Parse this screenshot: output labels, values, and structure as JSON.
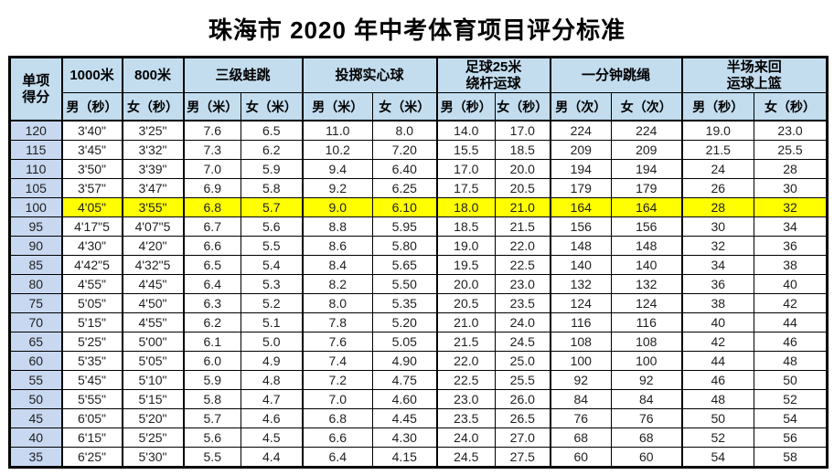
{
  "title": "珠海市 2020 年中考体育项目评分标准",
  "table": {
    "score_header": "单项\n得分",
    "groups": [
      {
        "label": "1000米",
        "span": 1
      },
      {
        "label": "800米",
        "span": 1
      },
      {
        "label": "三级蛙跳",
        "span": 2
      },
      {
        "label": "投掷实心球",
        "span": 2
      },
      {
        "label": "足球25米\n绕杆运球",
        "span": 2
      },
      {
        "label": "一分钟跳绳",
        "span": 2
      },
      {
        "label": "半场来回\n运球上篮",
        "span": 2
      }
    ],
    "sub_headers": [
      "男（秒）",
      "女（秒）",
      "男（米）",
      "女（米）",
      "男（米）",
      "女（米）",
      "男（秒）",
      "女（秒）",
      "男（次）",
      "女（次）",
      "男（秒）",
      "女（秒）"
    ],
    "highlight_score": "100",
    "rows": [
      {
        "score": "120",
        "values": [
          "3'40\"",
          "3'25\"",
          "7.6",
          "6.5",
          "11.0",
          "8.0",
          "14.0",
          "17.0",
          "224",
          "224",
          "19.0",
          "23.0"
        ]
      },
      {
        "score": "115",
        "values": [
          "3'45\"",
          "3'32\"",
          "7.3",
          "6.2",
          "10.2",
          "7.20",
          "15.5",
          "18.5",
          "209",
          "209",
          "21.5",
          "25.5"
        ]
      },
      {
        "score": "110",
        "values": [
          "3'50\"",
          "3'39\"",
          "7.0",
          "5.9",
          "9.4",
          "6.40",
          "17.0",
          "20.0",
          "194",
          "194",
          "24",
          "28"
        ]
      },
      {
        "score": "105",
        "values": [
          "3'57\"",
          "3'47\"",
          "6.9",
          "5.8",
          "9.2",
          "6.25",
          "17.5",
          "20.5",
          "179",
          "179",
          "26",
          "30"
        ]
      },
      {
        "score": "100",
        "values": [
          "4'05\"",
          "3'55\"",
          "6.8",
          "5.7",
          "9.0",
          "6.10",
          "18.0",
          "21.0",
          "164",
          "164",
          "28",
          "32"
        ]
      },
      {
        "score": "95",
        "values": [
          "4'17\"5",
          "4'07\"5",
          "6.7",
          "5.6",
          "8.8",
          "5.95",
          "18.5",
          "21.5",
          "156",
          "156",
          "30",
          "34"
        ]
      },
      {
        "score": "90",
        "values": [
          "4'30\"",
          "4'20\"",
          "6.6",
          "5.5",
          "8.6",
          "5.80",
          "19.0",
          "22.0",
          "148",
          "148",
          "32",
          "36"
        ]
      },
      {
        "score": "85",
        "values": [
          "4'42\"5",
          "4'32\"5",
          "6.5",
          "5.4",
          "8.4",
          "5.65",
          "19.5",
          "22.5",
          "140",
          "140",
          "34",
          "38"
        ]
      },
      {
        "score": "80",
        "values": [
          "4'55\"",
          "4'45\"",
          "6.4",
          "5.3",
          "8.2",
          "5.50",
          "20.0",
          "23.0",
          "132",
          "132",
          "36",
          "40"
        ]
      },
      {
        "score": "75",
        "values": [
          "5'05\"",
          "4'50\"",
          "6.3",
          "5.2",
          "8.0",
          "5.35",
          "20.5",
          "23.5",
          "124",
          "124",
          "38",
          "42"
        ]
      },
      {
        "score": "70",
        "values": [
          "5'15\"",
          "4'55\"",
          "6.2",
          "5.1",
          "7.8",
          "5.20",
          "21.0",
          "24.0",
          "116",
          "116",
          "40",
          "44"
        ]
      },
      {
        "score": "65",
        "values": [
          "5'25\"",
          "5'00\"",
          "6.1",
          "5.0",
          "7.6",
          "5.05",
          "21.5",
          "24.5",
          "108",
          "108",
          "42",
          "46"
        ]
      },
      {
        "score": "60",
        "values": [
          "5'35\"",
          "5'05\"",
          "6.0",
          "4.9",
          "7.4",
          "4.90",
          "22.0",
          "25.0",
          "100",
          "100",
          "44",
          "48"
        ]
      },
      {
        "score": "55",
        "values": [
          "5'45\"",
          "5'10\"",
          "5.9",
          "4.8",
          "7.2",
          "4.75",
          "22.5",
          "25.5",
          "92",
          "92",
          "46",
          "50"
        ]
      },
      {
        "score": "50",
        "values": [
          "5'55\"",
          "5'15\"",
          "5.8",
          "4.7",
          "7.0",
          "4.60",
          "23.0",
          "26.0",
          "84",
          "84",
          "48",
          "52"
        ]
      },
      {
        "score": "45",
        "values": [
          "6'05\"",
          "5'20\"",
          "5.7",
          "4.6",
          "6.8",
          "4.45",
          "23.5",
          "26.5",
          "76",
          "76",
          "50",
          "54"
        ]
      },
      {
        "score": "40",
        "values": [
          "6'15\"",
          "5'25\"",
          "5.6",
          "4.5",
          "6.6",
          "4.30",
          "24.0",
          "27.0",
          "68",
          "68",
          "52",
          "56"
        ]
      },
      {
        "score": "35",
        "values": [
          "6'25\"",
          "5'30\"",
          "5.5",
          "4.4",
          "6.4",
          "4.15",
          "24.5",
          "27.5",
          "60",
          "60",
          "54",
          "58"
        ]
      }
    ],
    "colors": {
      "header_bg": "#c3ddef",
      "score_col_bg": "#c7d8f0",
      "highlight_bg": "#ffff00",
      "border": "#000000"
    }
  }
}
